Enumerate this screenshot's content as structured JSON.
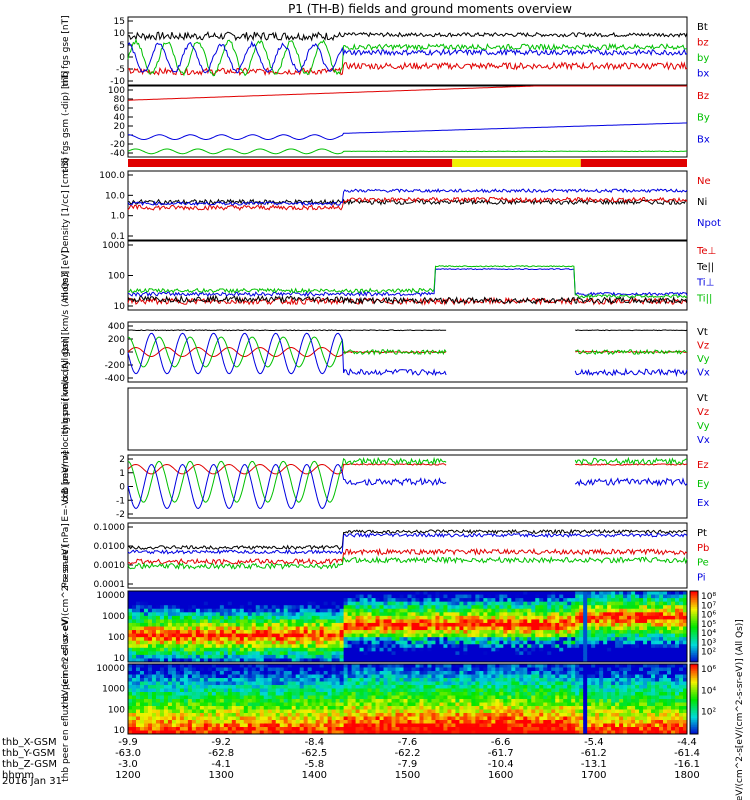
{
  "title": "P1 (TH-B) fields and ground moments overview",
  "date_label": "2016 Jan 31",
  "colors": {
    "black": "#000000",
    "red": "#e00000",
    "green": "#00c000",
    "blue": "#0000e0",
    "yellow": "#f0f000"
  },
  "chart_data": [
    {
      "type": "line",
      "ylabel": [
        "thb",
        "fgs",
        "gse",
        "[nT]"
      ],
      "ylim": [
        -10,
        15
      ],
      "yticks": [
        "15",
        "10",
        "5",
        "0",
        "-5",
        "-10"
      ],
      "legend": [
        {
          "name": "Bt",
          "color": "black"
        },
        {
          "name": "bz",
          "color": "red"
        },
        {
          "name": "by",
          "color": "green"
        },
        {
          "name": "bx",
          "color": "blue"
        }
      ],
      "series": [
        {
          "name": "Bt",
          "color": "black",
          "shape": "mag",
          "base": 7,
          "step": 1.5
        },
        {
          "name": "bz",
          "color": "red",
          "shape": "flat",
          "pre": -5,
          "post": -3,
          "noise": 1.2
        },
        {
          "name": "by",
          "color": "green",
          "shape": "wavebox",
          "amp": 6,
          "center": 0,
          "post": 4
        },
        {
          "name": "bx",
          "color": "blue",
          "shape": "wavebox",
          "amp": 5,
          "center": 0,
          "phase": 1.57,
          "post": 2
        }
      ]
    },
    {
      "type": "line",
      "ylabel": [
        "thb",
        "fgs",
        "gsm",
        "(-dip)",
        "[nT]"
      ],
      "ylim": [
        -50,
        100
      ],
      "yticks": [
        "100",
        "80",
        "60",
        "40",
        "20",
        "0",
        "-20",
        "-40"
      ],
      "legend": [
        {
          "name": "Bz",
          "color": "red"
        },
        {
          "name": "By",
          "color": "green"
        },
        {
          "name": "Bx",
          "color": "blue"
        }
      ],
      "series": [
        {
          "name": "Bz",
          "color": "red",
          "shape": "ramp",
          "from": 70,
          "to": 105
        },
        {
          "name": "By",
          "color": "green",
          "shape": "wavesmall",
          "amp": 5,
          "center": -38,
          "post": -38
        },
        {
          "name": "Bx",
          "color": "blue",
          "shape": "wavestep",
          "amp": 5,
          "center": -8,
          "post_from": 0,
          "post_to": 22
        }
      ]
    },
    {
      "type": "bar_status",
      "segments": [
        {
          "from": 0,
          "to": 0.58,
          "color": "red"
        },
        {
          "from": 0.58,
          "to": 0.81,
          "color": "yellow"
        },
        {
          "from": 0.81,
          "to": 1,
          "color": "red"
        }
      ]
    },
    {
      "type": "line",
      "log": true,
      "ylabel": [
        "Density",
        "[1/cc]",
        "[cm-3]"
      ],
      "ylim": [
        0.05,
        300
      ],
      "yticks": [
        "100.0",
        "10.0",
        "1.0",
        "0.1"
      ],
      "legend": [
        {
          "name": "Ne",
          "color": "red"
        },
        {
          "name": "Ni",
          "color": "black"
        },
        {
          "name": "Npot",
          "color": "blue"
        }
      ],
      "series": [
        {
          "name": "Ni",
          "color": "black",
          "shape": "logflat",
          "pre": 6,
          "post": 6
        },
        {
          "name": "Ne",
          "color": "red",
          "shape": "logflat",
          "pre": 3,
          "post": 8
        },
        {
          "name": "Npot",
          "color": "blue",
          "shape": "logstep",
          "pre": 5,
          "post": 25
        }
      ]
    },
    {
      "type": "line",
      "log": true,
      "ylabel": [
        "mom3",
        "[eV]"
      ],
      "ylim": [
        5,
        5000
      ],
      "yticks": [
        "1000",
        "100",
        "10"
      ],
      "legend": [
        {
          "name": "Te⊥",
          "color": "red"
        },
        {
          "name": "Te||",
          "color": "black"
        },
        {
          "name": "Ti⊥",
          "color": "blue"
        },
        {
          "name": "Ti||",
          "color": "green"
        }
      ],
      "series": [
        {
          "name": "Te⊥",
          "color": "red",
          "shape": "logflat",
          "pre": 12,
          "post": 12
        },
        {
          "name": "Te||",
          "color": "black",
          "shape": "logflat",
          "pre": 15,
          "post": 13
        },
        {
          "name": "Ti⊥",
          "color": "blue",
          "shape": "ticurve",
          "pre": 25,
          "mid": 300,
          "post": 25
        },
        {
          "name": "Ti||",
          "color": "green",
          "shape": "ticurve",
          "pre": 35,
          "mid": 400,
          "post": 20
        }
      ]
    },
    {
      "type": "line",
      "ylabel": [
        "thb",
        "peir",
        "velocity",
        "gsm",
        "[km/s (All Qs)]"
      ],
      "ylim": [
        -400,
        400
      ],
      "yticks": [
        "400",
        "200",
        "0",
        "-200",
        "-400"
      ],
      "legend": [
        {
          "name": "Vt",
          "color": "black"
        },
        {
          "name": "Vz",
          "color": "red"
        },
        {
          "name": "Vy",
          "color": "green"
        },
        {
          "name": "Vx",
          "color": "blue"
        }
      ],
      "series": [
        {
          "name": "Vt",
          "color": "black",
          "shape": "gapflat",
          "pre": 290,
          "post": 290
        },
        {
          "name": "Vz",
          "color": "red",
          "shape": "gapwave",
          "amp": 60,
          "center": 0,
          "post": 0
        },
        {
          "name": "Vy",
          "color": "green",
          "shape": "gapwave",
          "amp": 200,
          "center": 0,
          "phase": 1.57,
          "post": 0
        },
        {
          "name": "Vx",
          "color": "blue",
          "shape": "gapwave",
          "amp": 270,
          "center": -20,
          "phase": 3.1,
          "post": -270
        }
      ]
    },
    {
      "type": "line",
      "empty": true,
      "ylabel": [
        "thb",
        "peer",
        "velocity",
        "gsm",
        "[km/s (All Qs)]"
      ],
      "ylim": [
        -1,
        1
      ],
      "yticks": [],
      "legend": [
        {
          "name": "Vt",
          "color": "black"
        },
        {
          "name": "Vz",
          "color": "red"
        },
        {
          "name": "Vy",
          "color": "green"
        },
        {
          "name": "Vx",
          "color": "blue"
        }
      ],
      "series": []
    },
    {
      "type": "line",
      "ylabel": [
        "E=-VxB",
        "[mV/m]"
      ],
      "ylim": [
        -2,
        2
      ],
      "yticks": [
        "2",
        "1",
        "0",
        "-1",
        "-2"
      ],
      "legend": [
        {
          "name": "Ez",
          "color": "red"
        },
        {
          "name": "Ey",
          "color": "green"
        },
        {
          "name": "Ex",
          "color": "blue"
        }
      ],
      "series": [
        {
          "name": "Ez",
          "color": "red",
          "shape": "gapwave",
          "amp": 0.3,
          "center": 1.1,
          "post": 1.4
        },
        {
          "name": "Ey",
          "color": "green",
          "shape": "gapwave",
          "amp": 1.3,
          "center": 0.3,
          "phase": 1.57,
          "post": 1.6
        },
        {
          "name": "Ex",
          "color": "blue",
          "shape": "gapwave",
          "amp": 1.4,
          "center": 0,
          "phase": 3.1,
          "post": 0.3
        }
      ]
    },
    {
      "type": "line",
      "log": true,
      "ylabel": [
        "Pressure",
        "[nPa]"
      ],
      "ylim": [
        0.0005,
        0.8
      ],
      "yticks": [
        "0.1000",
        "0.0100",
        "0.0010",
        "0.0001"
      ],
      "legend": [
        {
          "name": "Pt",
          "color": "black"
        },
        {
          "name": "Pb",
          "color": "red"
        },
        {
          "name": "Pe",
          "color": "green"
        },
        {
          "name": "Pi",
          "color": "blue"
        }
      ],
      "series": [
        {
          "name": "Pt",
          "color": "black",
          "shape": "logstep",
          "pre": 0.05,
          "post": 0.3
        },
        {
          "name": "Pb",
          "color": "red",
          "shape": "logflat",
          "pre": 0.01,
          "post": 0.03
        },
        {
          "name": "Pe",
          "color": "green",
          "shape": "logflat",
          "pre": 0.006,
          "post": 0.012
        },
        {
          "name": "Pi",
          "color": "blue",
          "shape": "logstep",
          "pre": 0.03,
          "post": 0.2
        }
      ]
    },
    {
      "type": "heatmap",
      "ylabel": [
        "thb",
        "peir",
        "en",
        "eflux",
        "eV",
        "(cm^2-s-",
        "sr-eV)"
      ],
      "yticks": [
        "10000",
        "1000",
        "100",
        "10"
      ],
      "band": "ion"
    },
    {
      "type": "heatmap",
      "ylabel": [
        "thb",
        "peer",
        "en",
        "eflux",
        "eV",
        "(cm^2-s-",
        "sr-eV)"
      ],
      "yticks": [
        "10000",
        "1000",
        "100",
        "10"
      ],
      "band": "electron"
    }
  ],
  "colorbar": {
    "top_labels": [
      "10⁸",
      "10⁷",
      "10⁶",
      "10⁵",
      "10⁴",
      "10³",
      "10²"
    ],
    "bottom_labels": [
      "10⁶",
      "10⁴",
      "10²"
    ],
    "unit": "[eV/(cm^2-s[eV/(cm^2-s-sr-eV)] (All Qs)]"
  },
  "x_axis": {
    "rows": [
      {
        "label": "thb_X-GSM",
        "values": [
          "-9.9",
          "-9.2",
          "-8.4",
          "-7.6",
          "-6.6",
          "-5.4",
          "-4.4"
        ]
      },
      {
        "label": "thb_Y-GSM",
        "values": [
          "-63.0",
          "-62.8",
          "-62.5",
          "-62.2",
          "-61.7",
          "-61.2",
          "-61.4"
        ]
      },
      {
        "label": "thb_Z-GSM",
        "values": [
          "-3.0",
          "-4.1",
          "-5.8",
          "-7.9",
          "-10.4",
          "-13.1",
          "-16.1"
        ]
      },
      {
        "label": "hhmm",
        "values": [
          "1200",
          "1300",
          "1400",
          "1500",
          "1600",
          "1700",
          "1800"
        ]
      }
    ]
  }
}
